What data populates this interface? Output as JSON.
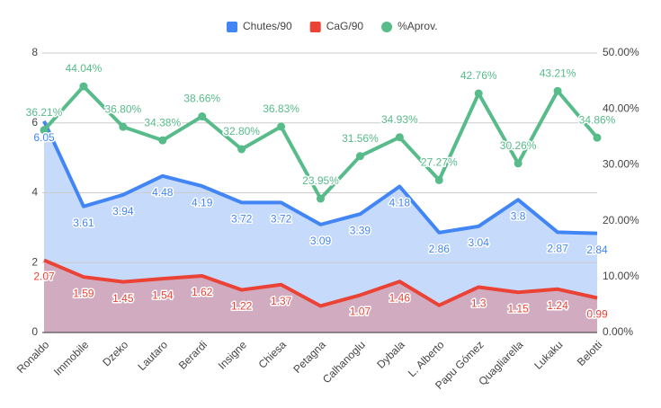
{
  "chart_data": {
    "type": "line",
    "categories": [
      "Ronaldo",
      "Immobile",
      "Dzeko",
      "Lautaro",
      "Berardi",
      "Insigne",
      "Chiesa",
      "Petagna",
      "Calhanoglu",
      "Dybala",
      "L. Alberto",
      "Papu Gómez",
      "Quagliarella",
      "Lukaku",
      "Belotti"
    ],
    "series": [
      {
        "name": "Chutes/90",
        "color": "#4285f4",
        "area": true,
        "marker": "rect",
        "values": [
          6.05,
          3.61,
          3.94,
          4.48,
          4.19,
          3.72,
          3.72,
          3.09,
          3.39,
          4.18,
          2.86,
          3.04,
          3.8,
          2.87,
          2.84
        ]
      },
      {
        "name": "CaG/90",
        "color": "#ea4335",
        "area": true,
        "marker": "rect",
        "values": [
          2.07,
          1.59,
          1.45,
          1.54,
          1.62,
          1.22,
          1.37,
          0.76,
          1.07,
          1.46,
          0.78,
          1.3,
          1.15,
          1.24,
          0.99
        ],
        "value_labels": [
          "2.07",
          "1.59",
          "1.45",
          "1.54",
          "1.62",
          "1.22",
          "1.37",
          null,
          "1.07",
          "1.46",
          null,
          "1.3",
          "1.15",
          "1.24",
          "0.99"
        ]
      },
      {
        "name": "%Aprov.",
        "color": "#57bb8a",
        "area": false,
        "marker": "circle",
        "axis": "y2",
        "values": [
          36.21,
          44.04,
          36.8,
          34.38,
          38.66,
          32.8,
          36.83,
          23.95,
          31.56,
          34.93,
          27.27,
          42.76,
          30.26,
          43.21,
          34.86
        ],
        "value_labels": [
          "36.21%",
          "44.04%",
          "36.80%",
          "34.38%",
          "38.66%",
          "32.80%",
          "36.83%",
          "23.95%",
          "31.56%",
          "34.93%",
          "27.27%",
          "42.76%",
          "30.26%",
          "43.21%",
          "34.86%"
        ]
      }
    ],
    "ylim": [
      0,
      8
    ],
    "yticks": [
      0,
      2,
      4,
      6,
      8
    ],
    "y2lim": [
      0,
      50
    ],
    "y2ticks": [
      {
        "value": 0,
        "label": "0.00%"
      },
      {
        "value": 10,
        "label": "10.00%"
      },
      {
        "value": 20,
        "label": "20.00%"
      },
      {
        "value": 30,
        "label": "30.00%"
      },
      {
        "value": 40,
        "label": "40.00%"
      },
      {
        "value": 50,
        "label": "50.00%"
      }
    ],
    "grid": true,
    "legend": "top"
  }
}
